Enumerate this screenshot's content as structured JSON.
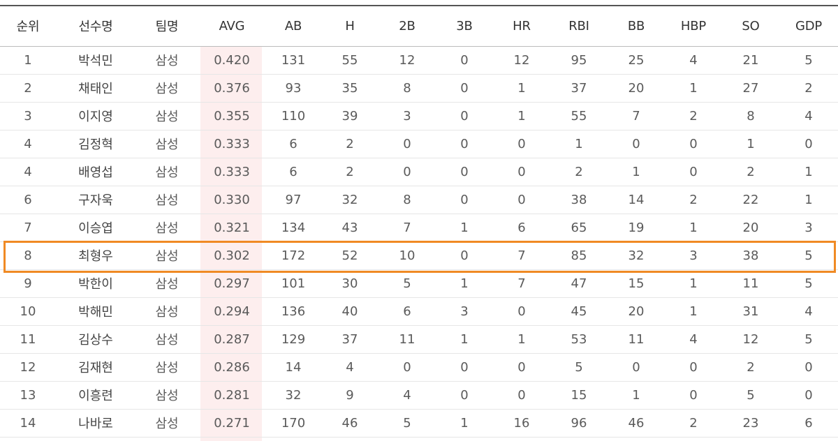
{
  "table": {
    "headers": [
      "순위",
      "선수명",
      "팀명",
      "AVG",
      "AB",
      "H",
      "2B",
      "3B",
      "HR",
      "RBI",
      "BB",
      "HBP",
      "SO",
      "GDP"
    ],
    "rows": [
      [
        "1",
        "박석민",
        "삼성",
        "0.420",
        "131",
        "55",
        "12",
        "0",
        "12",
        "95",
        "25",
        "4",
        "21",
        "5"
      ],
      [
        "2",
        "채태인",
        "삼성",
        "0.376",
        "93",
        "35",
        "8",
        "0",
        "1",
        "37",
        "20",
        "1",
        "27",
        "2"
      ],
      [
        "3",
        "이지영",
        "삼성",
        "0.355",
        "110",
        "39",
        "3",
        "0",
        "1",
        "55",
        "7",
        "2",
        "8",
        "4"
      ],
      [
        "4",
        "김정혁",
        "삼성",
        "0.333",
        "6",
        "2",
        "0",
        "0",
        "0",
        "1",
        "0",
        "0",
        "1",
        "0"
      ],
      [
        "4",
        "배영섭",
        "삼성",
        "0.333",
        "6",
        "2",
        "0",
        "0",
        "0",
        "2",
        "1",
        "0",
        "2",
        "1"
      ],
      [
        "6",
        "구자욱",
        "삼성",
        "0.330",
        "97",
        "32",
        "8",
        "0",
        "0",
        "38",
        "14",
        "2",
        "22",
        "1"
      ],
      [
        "7",
        "이승엽",
        "삼성",
        "0.321",
        "134",
        "43",
        "7",
        "1",
        "6",
        "65",
        "19",
        "1",
        "20",
        "3"
      ],
      [
        "8",
        "최형우",
        "삼성",
        "0.302",
        "172",
        "52",
        "10",
        "0",
        "7",
        "85",
        "32",
        "3",
        "38",
        "5"
      ],
      [
        "9",
        "박한이",
        "삼성",
        "0.297",
        "101",
        "30",
        "5",
        "1",
        "7",
        "47",
        "15",
        "1",
        "11",
        "5"
      ],
      [
        "10",
        "박해민",
        "삼성",
        "0.294",
        "136",
        "40",
        "6",
        "3",
        "0",
        "45",
        "20",
        "1",
        "31",
        "4"
      ],
      [
        "11",
        "김상수",
        "삼성",
        "0.287",
        "129",
        "37",
        "11",
        "1",
        "1",
        "53",
        "11",
        "4",
        "12",
        "5"
      ],
      [
        "12",
        "김재현",
        "삼성",
        "0.286",
        "14",
        "4",
        "0",
        "0",
        "0",
        "5",
        "0",
        "0",
        "2",
        "0"
      ],
      [
        "13",
        "이흥련",
        "삼성",
        "0.281",
        "32",
        "9",
        "4",
        "0",
        "0",
        "15",
        "1",
        "0",
        "5",
        "0"
      ],
      [
        "14",
        "나바로",
        "삼성",
        "0.271",
        "170",
        "46",
        "5",
        "1",
        "16",
        "96",
        "46",
        "2",
        "23",
        "6"
      ]
    ],
    "highlighted_row_index": 7
  },
  "colors": {
    "highlight_border": "#f08a24",
    "avg_column_bg": "#fdeeee",
    "header_top_border": "#555555"
  }
}
